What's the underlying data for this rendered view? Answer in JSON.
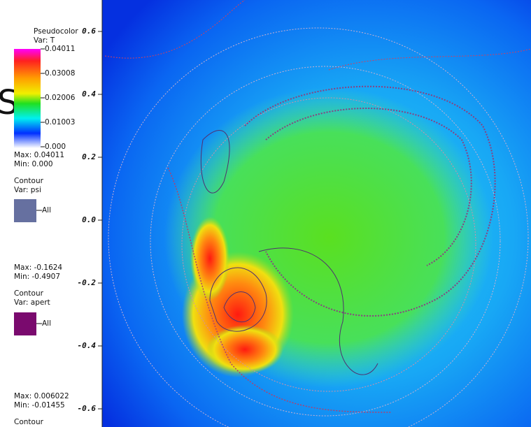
{
  "fragment": "S)",
  "pseudocolor": {
    "title": "Pseudocolor",
    "var": "Var: T",
    "labels": [
      "0.04011",
      "0.03008",
      "0.02006",
      "0.01003",
      "0.000"
    ],
    "max": "Max: 0.04011",
    "min": "Min: 0.000"
  },
  "contour_psi": {
    "title": "Contour",
    "var": "Var: psi",
    "label": "All",
    "max": "Max: -0.1624",
    "min": "Min: -0.4907"
  },
  "contour_apert": {
    "title": "Contour",
    "var": "Var: apert",
    "label": "All",
    "max": "Max: 0.006022",
    "min": "Min: -0.01455"
  },
  "contour_next": {
    "title": "Contour"
  },
  "axis": {
    "ticks": [
      "0.6",
      "0.4",
      "0.2",
      "0.0",
      "-0.2",
      "-0.4",
      "-0.6"
    ]
  }
}
